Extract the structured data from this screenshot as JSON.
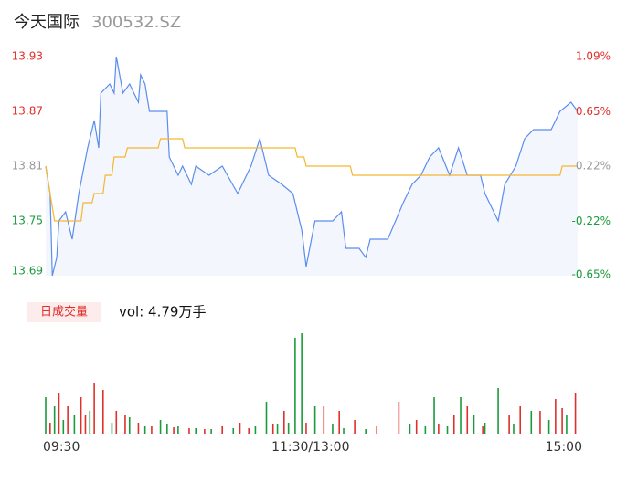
{
  "header": {
    "name": "今天国际",
    "code": "300532.SZ"
  },
  "chart_data": [
    {
      "type": "line",
      "xlim": [
        0,
        241
      ],
      "xticks": [
        {
          "value": 0,
          "label": "09:30"
        },
        {
          "value": 120,
          "label": "11:30/13:00"
        },
        {
          "value": 241,
          "label": "15:00"
        }
      ],
      "ylim": [
        13.69,
        13.93
      ],
      "yticks": [
        13.69,
        13.75,
        13.81,
        13.87,
        13.93
      ],
      "ytick_colors": [
        "#1a9b3c",
        "#1a9b3c",
        "#999999",
        "#e0302c",
        "#e0302c"
      ],
      "y2lim": [
        -0.65,
        1.09
      ],
      "y2ticks": [
        {
          "value": -0.65,
          "label": "-0.65%"
        },
        {
          "value": -0.22,
          "label": "-0.22%"
        },
        {
          "value": 0.22,
          "label": "0.22%"
        },
        {
          "value": 0.65,
          "label": "0.65%"
        },
        {
          "value": 1.09,
          "label": "1.09%"
        }
      ],
      "area_color": "#f3f6fc",
      "series": [
        {
          "color": "#5b8def",
          "x": [
            0,
            2,
            3,
            5,
            6,
            9,
            12,
            15,
            19,
            22,
            24,
            25,
            29,
            31,
            32,
            35,
            38,
            42,
            43,
            45,
            47,
            51,
            55,
            56,
            60,
            62,
            66,
            68,
            74,
            80,
            87,
            93,
            97,
            101,
            107,
            112,
            116,
            118,
            122,
            126,
            130,
            134,
            136,
            142,
            145,
            147,
            155,
            162,
            166,
            170,
            174,
            178,
            183,
            187,
            191,
            197,
            199,
            205,
            208,
            213,
            217,
            221,
            225,
            229,
            233,
            238,
            241
          ],
          "values": [
            13.81,
            13.78,
            13.69,
            13.71,
            13.75,
            13.76,
            13.73,
            13.78,
            13.83,
            13.86,
            13.83,
            13.89,
            13.9,
            13.89,
            13.93,
            13.89,
            13.9,
            13.88,
            13.91,
            13.9,
            13.87,
            13.87,
            13.87,
            13.82,
            13.8,
            13.81,
            13.79,
            13.81,
            13.8,
            13.81,
            13.78,
            13.81,
            13.84,
            13.8,
            13.79,
            13.78,
            13.74,
            13.7,
            13.75,
            13.75,
            13.75,
            13.76,
            13.72,
            13.72,
            13.71,
            13.73,
            13.73,
            13.77,
            13.79,
            13.8,
            13.82,
            13.83,
            13.8,
            13.83,
            13.8,
            13.8,
            13.78,
            13.75,
            13.79,
            13.81,
            13.84,
            13.85,
            13.85,
            13.85,
            13.87,
            13.88,
            13.87
          ]
        },
        {
          "color": "#f5b731",
          "x": [
            0,
            4,
            16,
            17,
            21,
            22,
            26,
            27,
            30,
            31,
            36,
            37,
            51,
            52,
            62,
            63,
            113,
            114,
            117,
            118,
            138,
            139,
            233,
            234,
            241
          ],
          "values": [
            13.81,
            13.75,
            13.75,
            13.77,
            13.77,
            13.78,
            13.78,
            13.8,
            13.8,
            13.82,
            13.82,
            13.83,
            13.83,
            13.84,
            13.84,
            13.83,
            13.83,
            13.82,
            13.82,
            13.81,
            13.81,
            13.8,
            13.8,
            13.81,
            13.81
          ]
        }
      ]
    },
    {
      "type": "bar",
      "label": "日成交量",
      "summary": "vol: 4.79万手",
      "xlim": [
        0,
        241
      ],
      "ylim": [
        0,
        110
      ],
      "series": [
        {
          "color": "#e0302c",
          "x": [
            2,
            6,
            10,
            16,
            18,
            22,
            26,
            32,
            36,
            42,
            48,
            58,
            65,
            72,
            80,
            88,
            92,
            103,
            108,
            118,
            126,
            133,
            140,
            150,
            160,
            168,
            178,
            185,
            191,
            198,
            210,
            215,
            224,
            231,
            234,
            240
          ],
          "values": [
            12,
            45,
            30,
            40,
            20,
            55,
            48,
            25,
            20,
            12,
            8,
            7,
            6,
            5,
            8,
            12,
            6,
            10,
            25,
            12,
            30,
            25,
            15,
            8,
            35,
            15,
            10,
            20,
            30,
            8,
            20,
            30,
            25,
            38,
            28,
            45
          ]
        },
        {
          "color": "#1a9b3c",
          "x": [
            0,
            4,
            8,
            13,
            20,
            30,
            38,
            45,
            52,
            55,
            60,
            68,
            75,
            85,
            95,
            100,
            105,
            110,
            113,
            116,
            122,
            130,
            135,
            145,
            165,
            172,
            176,
            182,
            188,
            194,
            199,
            205,
            212,
            220,
            228,
            236
          ],
          "values": [
            40,
            30,
            15,
            20,
            25,
            12,
            18,
            8,
            15,
            10,
            8,
            6,
            5,
            6,
            8,
            35,
            10,
            12,
            105,
            110,
            30,
            10,
            6,
            5,
            10,
            8,
            40,
            8,
            40,
            20,
            12,
            50,
            10,
            25,
            15,
            20
          ]
        }
      ]
    }
  ]
}
